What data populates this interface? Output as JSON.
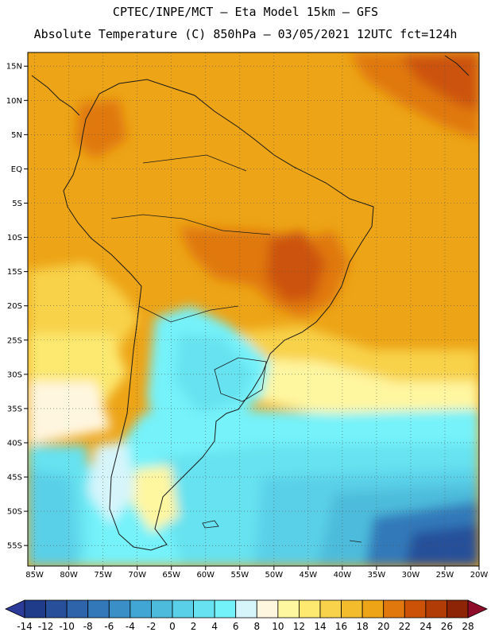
{
  "header": {
    "line1": "CPTEC/INPE/MCT –  Eta Model 15km – GFS",
    "line2": "Absolute Temperature (C) 850hPa – 03/05/2021 12UTC fct=124h"
  },
  "chart_data": {
    "type": "heatmap",
    "title": "Absolute Temperature (C) 850hPa",
    "model": "Eta Model 15km – GFS",
    "lon_range": [
      -86,
      -20
    ],
    "lat_range": [
      -58,
      17
    ],
    "x_ticks": [
      "85W",
      "80W",
      "75W",
      "70W",
      "65W",
      "60W",
      "55W",
      "50W",
      "45W",
      "40W",
      "35W",
      "30W",
      "25W",
      "20W"
    ],
    "y_ticks": [
      "15N",
      "10N",
      "5N",
      "EQ",
      "5S",
      "10S",
      "15S",
      "20S",
      "25S",
      "30S",
      "35S",
      "40S",
      "45S",
      "50S",
      "55S"
    ],
    "colorbar": {
      "labels": [
        "-14",
        "-12",
        "-10",
        "-8",
        "-6",
        "-4",
        "-2",
        "0",
        "2",
        "4",
        "6",
        "8",
        "10",
        "12",
        "14",
        "16",
        "18",
        "20",
        "22",
        "24",
        "26",
        "28"
      ],
      "colors": [
        "#1e3c8a",
        "#274f9a",
        "#2d64aa",
        "#3379ba",
        "#3a8fc7",
        "#41a6d3",
        "#4dbcdc",
        "#5ad0e8",
        "#66e2f0",
        "#74f2fa",
        "#d6f5fb",
        "#fff6e0",
        "#fff6a0",
        "#fde870",
        "#f8d24a",
        "#f2bc2c",
        "#eda416",
        "#e0780e",
        "#cc5208",
        "#b23c06",
        "#8e2406"
      ],
      "low_arrow": "#2c3a9a",
      "high_arrow": "#8e0c2a"
    }
  }
}
